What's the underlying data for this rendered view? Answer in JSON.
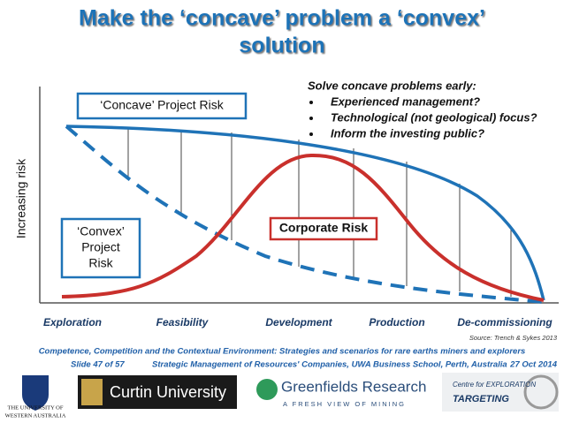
{
  "title": [
    "Make the ‘concave’ problem a ‘convex’",
    "solution"
  ],
  "y_axis_label": "Increasing risk",
  "labels": {
    "concave": "‘Concave’ Project Risk",
    "convex": [
      "‘Convex’",
      "Project",
      "Risk"
    ],
    "corporate": "Corporate Risk"
  },
  "notes": {
    "heading": "Solve concave problems early:",
    "bullets": [
      "Experienced management?",
      "Technological (not geological) focus?",
      "Inform the investing public?"
    ]
  },
  "stages": [
    "Exploration",
    "Feasibility",
    "Development",
    "Production",
    "De-commissioning"
  ],
  "source": "Source:  Trench & Sykes 2013",
  "footer": {
    "theme": "Competence, Competition and the Contextual Environment: Strategies and scenarios for rare earths miners and explorers",
    "slide": "Slide 47 of 57",
    "course": "Strategic Management of Resources' Companies, UWA Business School, Perth, Australia",
    "date": "27 Oct 2014"
  },
  "logos": {
    "uwa": [
      "THE UNIVERSITY OF",
      "WESTERN AUSTRALIA"
    ],
    "curtin": "Curtin University",
    "greenfields": [
      "Greenfields Research",
      "A FRESH VIEW OF MINING"
    ],
    "cet": [
      "Centre for EXPLORATION",
      "TARGETING"
    ]
  }
}
